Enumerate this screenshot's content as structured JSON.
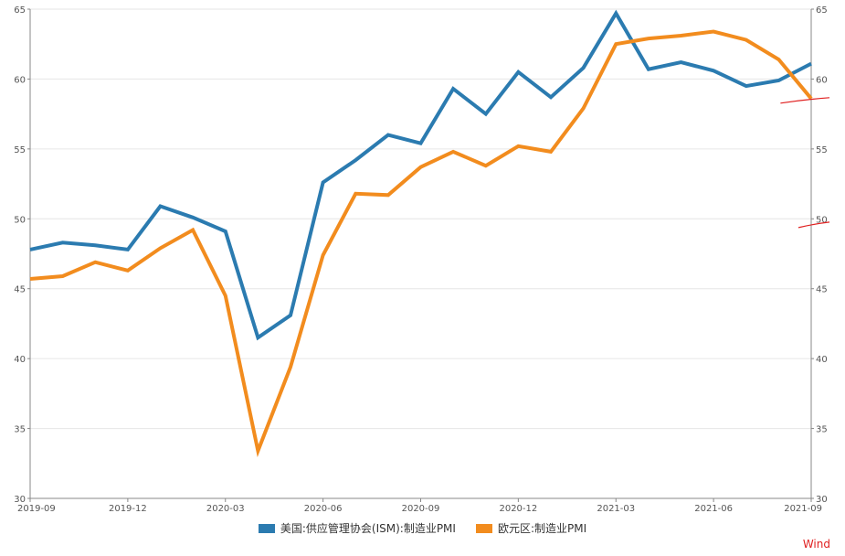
{
  "chart_data": {
    "type": "line",
    "title": "",
    "xlabel": "",
    "ylabel": "",
    "ylim": [
      30,
      65
    ],
    "y_ticks": [
      30,
      35,
      40,
      45,
      50,
      55,
      60,
      65
    ],
    "y_ticks_right": [
      30,
      35,
      40,
      45,
      50,
      55,
      60,
      65
    ],
    "x_tick_labels": [
      "2019-09",
      "2019-12",
      "2020-03",
      "2020-06",
      "2020-09",
      "2020-12",
      "2021-03",
      "2021-06",
      "2021-09"
    ],
    "grid": true,
    "legend_position": "bottom",
    "categories": [
      "2019-09",
      "2019-10",
      "2019-11",
      "2019-12",
      "2020-01",
      "2020-02",
      "2020-03",
      "2020-04",
      "2020-05",
      "2020-06",
      "2020-07",
      "2020-08",
      "2020-09",
      "2020-10",
      "2020-11",
      "2020-12",
      "2021-01",
      "2021-02",
      "2021-03",
      "2021-04",
      "2021-05",
      "2021-06",
      "2021-07",
      "2021-08",
      "2021-09"
    ],
    "series": [
      {
        "name": "美国:供应管理协会(ISM):制造业PMI",
        "color": "#2b7bb0",
        "values": [
          47.8,
          48.3,
          48.1,
          47.8,
          50.9,
          50.1,
          49.1,
          41.5,
          43.1,
          52.6,
          54.2,
          56.0,
          55.4,
          59.3,
          57.5,
          60.5,
          58.7,
          60.8,
          64.7,
          60.7,
          61.2,
          60.6,
          59.5,
          59.9,
          61.1
        ]
      },
      {
        "name": "欧元区:制造业PMI",
        "color": "#f28c1e",
        "values": [
          45.7,
          45.9,
          46.9,
          46.3,
          47.9,
          49.2,
          44.5,
          33.4,
          39.4,
          47.4,
          51.8,
          51.7,
          53.7,
          54.8,
          53.8,
          55.2,
          54.8,
          57.9,
          62.5,
          62.9,
          63.1,
          63.4,
          62.8,
          61.4,
          58.6
        ]
      }
    ],
    "annotations": [
      {
        "type": "handwritten-mark",
        "color": "#e02020",
        "y_value": 58.6,
        "x_start": "2021-08",
        "x_end": "2021-09"
      },
      {
        "type": "handwritten-mark",
        "color": "#e02020",
        "y_value": 49.7,
        "x_start": "2021-09",
        "x_end": "2021-09"
      }
    ],
    "source_label": "Wind"
  }
}
